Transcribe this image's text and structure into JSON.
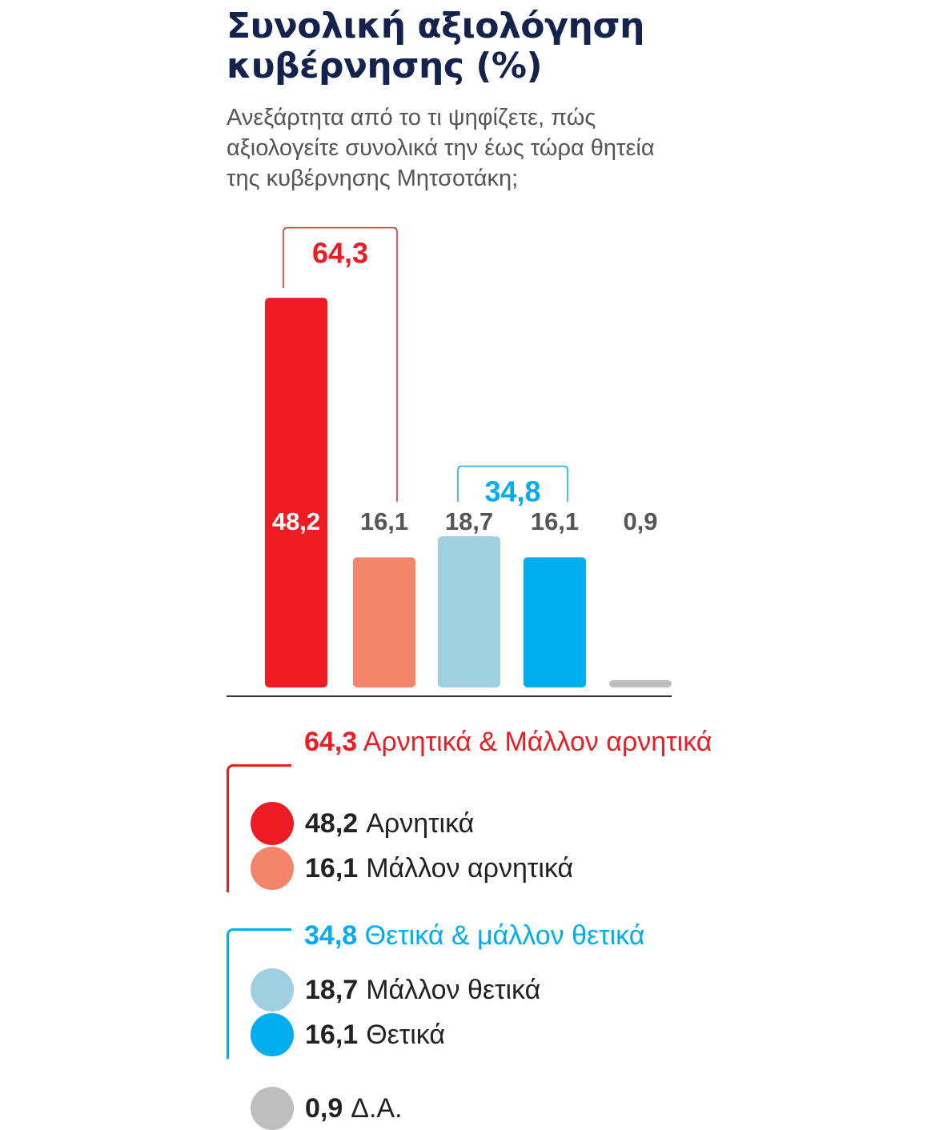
{
  "title": "Συνολική αξιολόγηση κυβέρνησης (%)",
  "subtitle": "Ανεξάρτητα από το τι ψηφίζετε, πώς αξιολογείτε συνολικά την έως τώρα θητεία της κυβέρνησης Μητσοτάκη;",
  "colors": {
    "title": "#14234d",
    "negative": "#ed1c24",
    "rather_negative": "#f4856a",
    "rather_positive": "#9fcfe0",
    "positive": "#00aeef",
    "no_answer": "#bcbec0",
    "label_dark": "#555555"
  },
  "chart_data": {
    "type": "bar",
    "title": "Συνολική αξιολόγηση κυβέρνησης (%)",
    "categories": [
      "Αρνητικά",
      "Μάλλον αρνητικά",
      "Μάλλον θετικά",
      "Θετικά",
      "Δ.Α."
    ],
    "values": [
      48.2,
      16.1,
      18.7,
      16.1,
      0.9
    ],
    "value_labels": [
      "48,2",
      "16,1",
      "18,7",
      "16,1",
      "0,9"
    ],
    "ylim": [
      0,
      50
    ],
    "grid": false,
    "groups": [
      {
        "label": "64,3",
        "value": 64.3,
        "bars": [
          0,
          1
        ]
      },
      {
        "label": "34,8",
        "value": 34.8,
        "bars": [
          2,
          3
        ]
      }
    ]
  },
  "legend": {
    "negative_group": {
      "value": "64,3",
      "label": "Αρνητικά & Μάλλον αρνητικά"
    },
    "positive_group": {
      "value": "34,8",
      "label": "Θετικά & μάλλον θετικά"
    },
    "items": [
      {
        "value": "48,2",
        "label": "Αρνητικά"
      },
      {
        "value": "16,1",
        "label": "Μάλλον αρνητικά"
      },
      {
        "value": "18,7",
        "label": "Μάλλον θετικά"
      },
      {
        "value": "16,1",
        "label": "Θετικά"
      },
      {
        "value": "0,9",
        "label": "Δ.Α."
      }
    ]
  }
}
